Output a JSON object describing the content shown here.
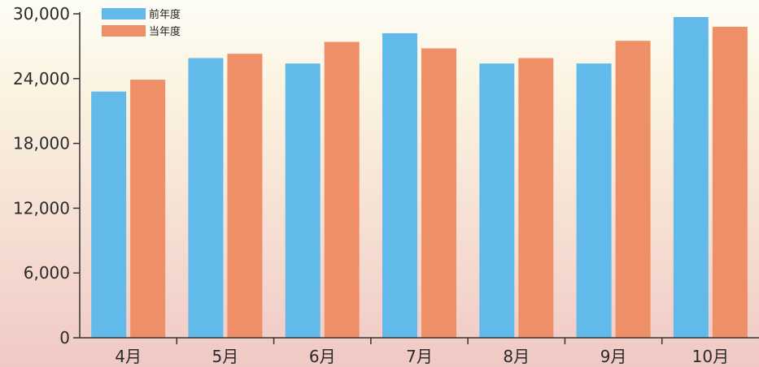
{
  "chart_data": {
    "type": "bar",
    "categories": [
      "4月",
      "5月",
      "6月",
      "7月",
      "8月",
      "9月",
      "10月"
    ],
    "series": [
      {
        "name": "前年度",
        "color": "#62baea",
        "values": [
          22800,
          25900,
          25400,
          28200,
          25400,
          25400,
          29700
        ]
      },
      {
        "name": "当年度",
        "color": "#ef8f68",
        "values": [
          23900,
          26300,
          27400,
          26800,
          25900,
          27500,
          28800
        ]
      }
    ],
    "yticks": [
      0,
      6000,
      12000,
      18000,
      24000,
      30000
    ],
    "ytick_labels": [
      "0",
      "6,000",
      "12,000",
      "18,000",
      "24,000",
      "30,000"
    ],
    "ylim": [
      0,
      30000
    ],
    "title": "",
    "xlabel": "",
    "ylabel": "",
    "grid": false,
    "legend_position": "top-left"
  }
}
